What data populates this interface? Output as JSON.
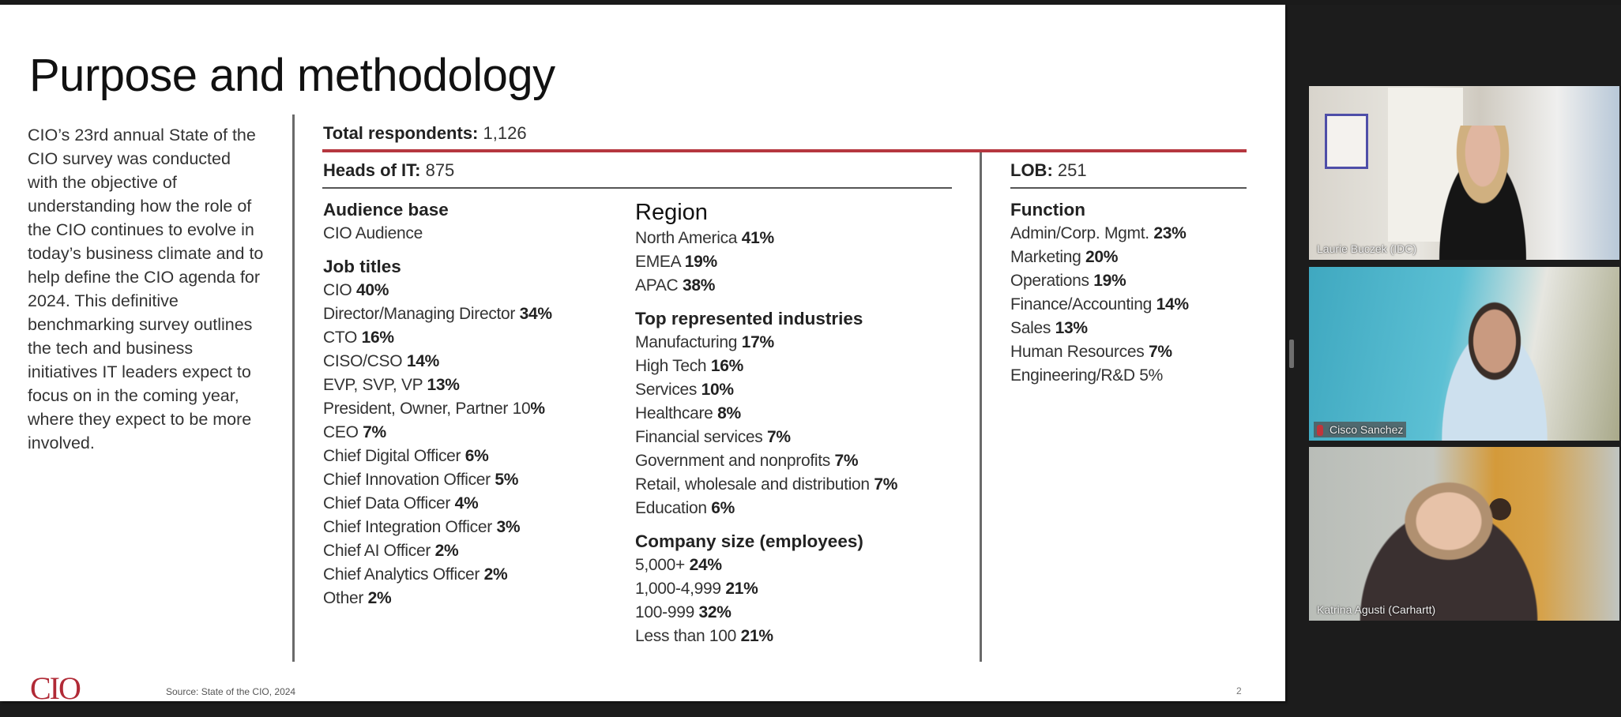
{
  "slide": {
    "title": "Purpose and methodology",
    "intro": "CIO’s 23rd annual State of the CIO survey was conducted with the objective of understanding how the role of the CIO continues to evolve in today’s business climate and to help define the CIO agenda for 2024. This definitive benchmarking survey outlines the tech and business initiatives IT leaders expect to focus on in the coming year, where they expect to be more involved.",
    "total": {
      "label": "Total respondents:",
      "value": " 1,126"
    },
    "heads": {
      "label": "Heads of IT:",
      "value": " 875"
    },
    "lob": {
      "label": "LOB:",
      "value": " 251"
    },
    "audience": {
      "heading": "Audience base",
      "value": "CIO Audience"
    },
    "job_titles": {
      "heading": "Job titles",
      "items": [
        {
          "label": "CIO ",
          "pct": "40%"
        },
        {
          "label": "Director/Managing Director ",
          "pct": "34%"
        },
        {
          "label": "CTO ",
          "pct": "16%"
        },
        {
          "label": "CISO/CSO ",
          "pct": "14%"
        },
        {
          "label": "EVP, SVP, VP ",
          "pct": "13%"
        },
        {
          "label": "President, Owner, Partner 10",
          "pct": "%"
        },
        {
          "label": "CEO ",
          "pct": "7%"
        },
        {
          "label": "Chief Digital Officer ",
          "pct": "6%"
        },
        {
          "label": "Chief Innovation Officer ",
          "pct": "5%"
        },
        {
          "label": "Chief Data Officer ",
          "pct": "4%"
        },
        {
          "label": "Chief Integration Officer ",
          "pct": "3%"
        },
        {
          "label": "Chief AI Officer ",
          "pct": "2%"
        },
        {
          "label": "Chief Analytics Officer ",
          "pct": "2%"
        },
        {
          "label": "Other ",
          "pct": "2%"
        }
      ]
    },
    "region": {
      "heading": "Region",
      "items": [
        {
          "label": "North America ",
          "pct": "41%"
        },
        {
          "label": "EMEA ",
          "pct": "19%"
        },
        {
          "label": "APAC ",
          "pct": "38%"
        }
      ]
    },
    "industries": {
      "heading": "Top represented industries",
      "items": [
        {
          "label": "Manufacturing ",
          "pct": "17%"
        },
        {
          "label": "High Tech ",
          "pct": "16%"
        },
        {
          "label": "Services ",
          "pct": "10%"
        },
        {
          "label": "Healthcare ",
          "pct": "8%"
        },
        {
          "label": "Financial services ",
          "pct": "7%"
        },
        {
          "label": "Government and nonprofits ",
          "pct": "7%"
        },
        {
          "label": "Retail, wholesale and distribution ",
          "pct": "7%"
        },
        {
          "label": "Education ",
          "pct": "6%"
        }
      ]
    },
    "company_size": {
      "heading": "Company size (employees)",
      "items": [
        {
          "label": "5,000+ ",
          "pct": "24%"
        },
        {
          "label": "1,000-4,999 ",
          "pct": "21%"
        },
        {
          "label": "100-999 ",
          "pct": "32%"
        },
        {
          "label": "Less than 100 ",
          "pct": "21%"
        }
      ]
    },
    "function": {
      "heading": "Function",
      "items": [
        {
          "label": "Admin/Corp. Mgmt. ",
          "pct": "23%"
        },
        {
          "label": "Marketing ",
          "pct": "20%"
        },
        {
          "label": "Operations ",
          "pct": "19%"
        },
        {
          "label": "Finance/Accounting ",
          "pct": "14%"
        },
        {
          "label": "Sales ",
          "pct": "13%"
        },
        {
          "label": "Human Resources ",
          "pct": "7%"
        },
        {
          "label": "Engineering/R&D 5%",
          "pct": ""
        }
      ]
    },
    "logo": "CIO",
    "source": "Source: State of the CIO, 2024",
    "page_number": "2",
    "accent_color": "#b5373f"
  },
  "participants": [
    {
      "name": "Laurie Buczek (IDC)",
      "muted": false
    },
    {
      "name": "Cisco Sanchez",
      "muted": true
    },
    {
      "name": "Katrina Agusti (Carhartt)",
      "muted": false
    }
  ]
}
